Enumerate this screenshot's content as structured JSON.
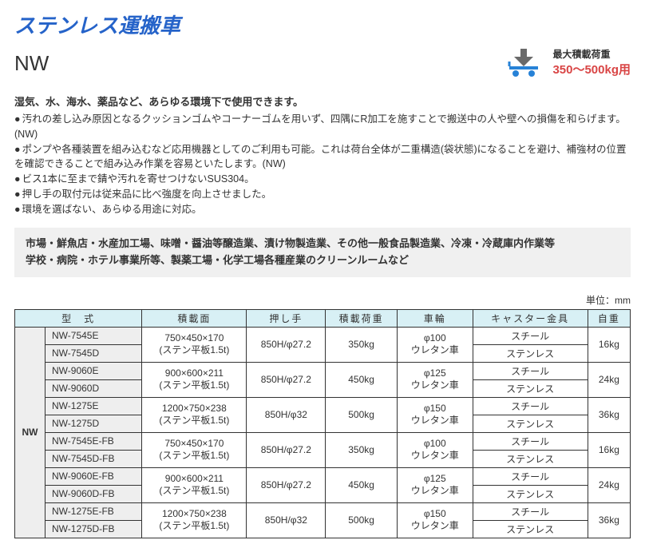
{
  "title": "ステンレス運搬車",
  "model": "NW",
  "load": {
    "label": "最大積載荷重",
    "value": "350～500kg用",
    "icon_color": "#6a6a6a",
    "accent_color": "#2782d7"
  },
  "lead": "湿気、水、海水、薬品など、あらゆる環境下で使用できます。",
  "bullets": [
    "汚れの差し込み原因となるクッションゴムやコーナーゴムを用いず、四隅にR加工を施すことで搬送中の人や壁への損傷を和らげます。(NW)",
    "ポンプや各種装置を組み込むなど応用機器としてのご利用も可能。これは荷台全体が二重構造(袋状態)になることを避け、補強材の位置を確認できることで組み込み作業を容易といたします。(NW)",
    "ビス1本に至まで錆や汚れを寄せつけないSUS304。",
    "押し手の取付元は従来品に比べ強度を向上させました。",
    "環境を選ばない、あらゆる用途に対応。"
  ],
  "applications": [
    "市場・鮮魚店・水産加工場、味噌・醤油等醸造業、漬け物製造業、その他一般食品製造業、冷凍・冷蔵庫内作業等",
    "学校・病院・ホテル事業所等、製薬工場・化学工場各種産業のクリーンルームなど"
  ],
  "unit_label": "単位：mm",
  "table": {
    "headers": [
      "型　式",
      "積載面",
      "押し手",
      "積載荷重",
      "車輪",
      "キャスター金具",
      "自重"
    ],
    "series": "NW",
    "groups": [
      {
        "models": [
          "NW-7545E",
          "NW-7545D"
        ],
        "loading_surface": "750×450×170\n(ステン平板1.5t)",
        "handle": "850H/φ27.2",
        "capacity": "350kg",
        "wheel": "φ100\nウレタン車",
        "casters": [
          "スチール",
          "ステンレス"
        ],
        "weight": "16kg"
      },
      {
        "models": [
          "NW-9060E",
          "NW-9060D"
        ],
        "loading_surface": "900×600×211\n(ステン平板1.5t)",
        "handle": "850H/φ27.2",
        "capacity": "450kg",
        "wheel": "φ125\nウレタン車",
        "casters": [
          "スチール",
          "ステンレス"
        ],
        "weight": "24kg"
      },
      {
        "models": [
          "NW-1275E",
          "NW-1275D"
        ],
        "loading_surface": "1200×750×238\n(ステン平板1.5t)",
        "handle": "850H/φ32",
        "capacity": "500kg",
        "wheel": "φ150\nウレタン車",
        "casters": [
          "スチール",
          "ステンレス"
        ],
        "weight": "36kg"
      },
      {
        "models": [
          "NW-7545E-FB",
          "NW-7545D-FB"
        ],
        "loading_surface": "750×450×170\n(ステン平板1.5t)",
        "handle": "850H/φ27.2",
        "capacity": "350kg",
        "wheel": "φ100\nウレタン車",
        "casters": [
          "スチール",
          "ステンレス"
        ],
        "weight": "16kg"
      },
      {
        "models": [
          "NW-9060E-FB",
          "NW-9060D-FB"
        ],
        "loading_surface": "900×600×211\n(ステン平板1.5t)",
        "handle": "850H/φ27.2",
        "capacity": "450kg",
        "wheel": "φ125\nウレタン車",
        "casters": [
          "スチール",
          "ステンレス"
        ],
        "weight": "24kg"
      },
      {
        "models": [
          "NW-1275E-FB",
          "NW-1275D-FB"
        ],
        "loading_surface": "1200×750×238\n(ステン平板1.5t)",
        "handle": "850H/φ32",
        "capacity": "500kg",
        "wheel": "φ150\nウレタン車",
        "casters": [
          "スチール",
          "ステンレス"
        ],
        "weight": "36kg"
      }
    ]
  },
  "colors": {
    "title": "#2563c9",
    "header_bg": "#d8f0f5",
    "app_bg": "#f0f0f0",
    "model_bg": "#eeeeee",
    "load_value": "#d94545"
  }
}
